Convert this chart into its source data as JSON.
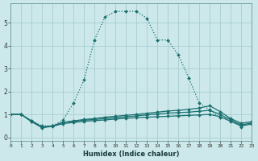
{
  "background_color": "#cce8ea",
  "grid_color": "#a8cdd0",
  "line_color": "#1a7070",
  "series": {
    "main": {
      "x": [
        0,
        1,
        2,
        3,
        4,
        5,
        6,
        7,
        8,
        9,
        10,
        11,
        12,
        13,
        14,
        15,
        16,
        17,
        18,
        19,
        20,
        21,
        22,
        23
      ],
      "y": [
        1.0,
        1.0,
        0.72,
        0.5,
        0.5,
        0.75,
        1.5,
        2.5,
        4.25,
        5.25,
        5.5,
        5.5,
        5.5,
        5.2,
        4.25,
        4.25,
        3.6,
        2.6,
        1.5,
        1.2,
        0.85,
        0.8,
        0.45,
        0.7
      ]
    },
    "flat1": {
      "x": [
        0,
        1,
        2,
        3,
        4,
        5,
        6,
        7,
        8,
        9,
        10,
        11,
        12,
        13,
        14,
        15,
        16,
        17,
        18,
        19,
        20,
        21,
        22,
        23
      ],
      "y": [
        1.0,
        1.0,
        0.72,
        0.45,
        0.5,
        0.65,
        0.72,
        0.78,
        0.82,
        0.88,
        0.92,
        0.96,
        1.0,
        1.05,
        1.1,
        1.15,
        1.18,
        1.22,
        1.28,
        1.38,
        1.12,
        0.82,
        0.62,
        0.68
      ]
    },
    "flat2": {
      "x": [
        0,
        1,
        2,
        3,
        4,
        5,
        6,
        7,
        8,
        9,
        10,
        11,
        12,
        13,
        14,
        15,
        16,
        17,
        18,
        19,
        20,
        21,
        22,
        23
      ],
      "y": [
        1.0,
        1.0,
        0.7,
        0.45,
        0.5,
        0.65,
        0.7,
        0.75,
        0.78,
        0.82,
        0.86,
        0.9,
        0.94,
        0.98,
        1.02,
        1.06,
        1.08,
        1.1,
        1.14,
        1.18,
        1.0,
        0.76,
        0.55,
        0.62
      ]
    },
    "flat3": {
      "x": [
        0,
        1,
        2,
        3,
        4,
        5,
        6,
        7,
        8,
        9,
        10,
        11,
        12,
        13,
        14,
        15,
        16,
        17,
        18,
        19,
        20,
        21,
        22,
        23
      ],
      "y": [
        1.0,
        1.0,
        0.68,
        0.42,
        0.48,
        0.6,
        0.65,
        0.7,
        0.73,
        0.76,
        0.8,
        0.83,
        0.86,
        0.88,
        0.9,
        0.92,
        0.94,
        0.96,
        0.98,
        1.0,
        0.9,
        0.7,
        0.5,
        0.58
      ]
    }
  },
  "xlim": [
    0,
    23
  ],
  "ylim": [
    -0.15,
    5.85
  ],
  "yticks": [
    0,
    1,
    2,
    3,
    4,
    5
  ],
  "xticks": [
    0,
    1,
    2,
    3,
    4,
    5,
    6,
    7,
    8,
    9,
    10,
    11,
    12,
    13,
    14,
    15,
    16,
    17,
    18,
    19,
    20,
    21,
    22,
    23
  ],
  "xlabel": "Humidex (Indice chaleur)",
  "marker": "D",
  "marker_size": 2.0,
  "linewidth": 0.9
}
